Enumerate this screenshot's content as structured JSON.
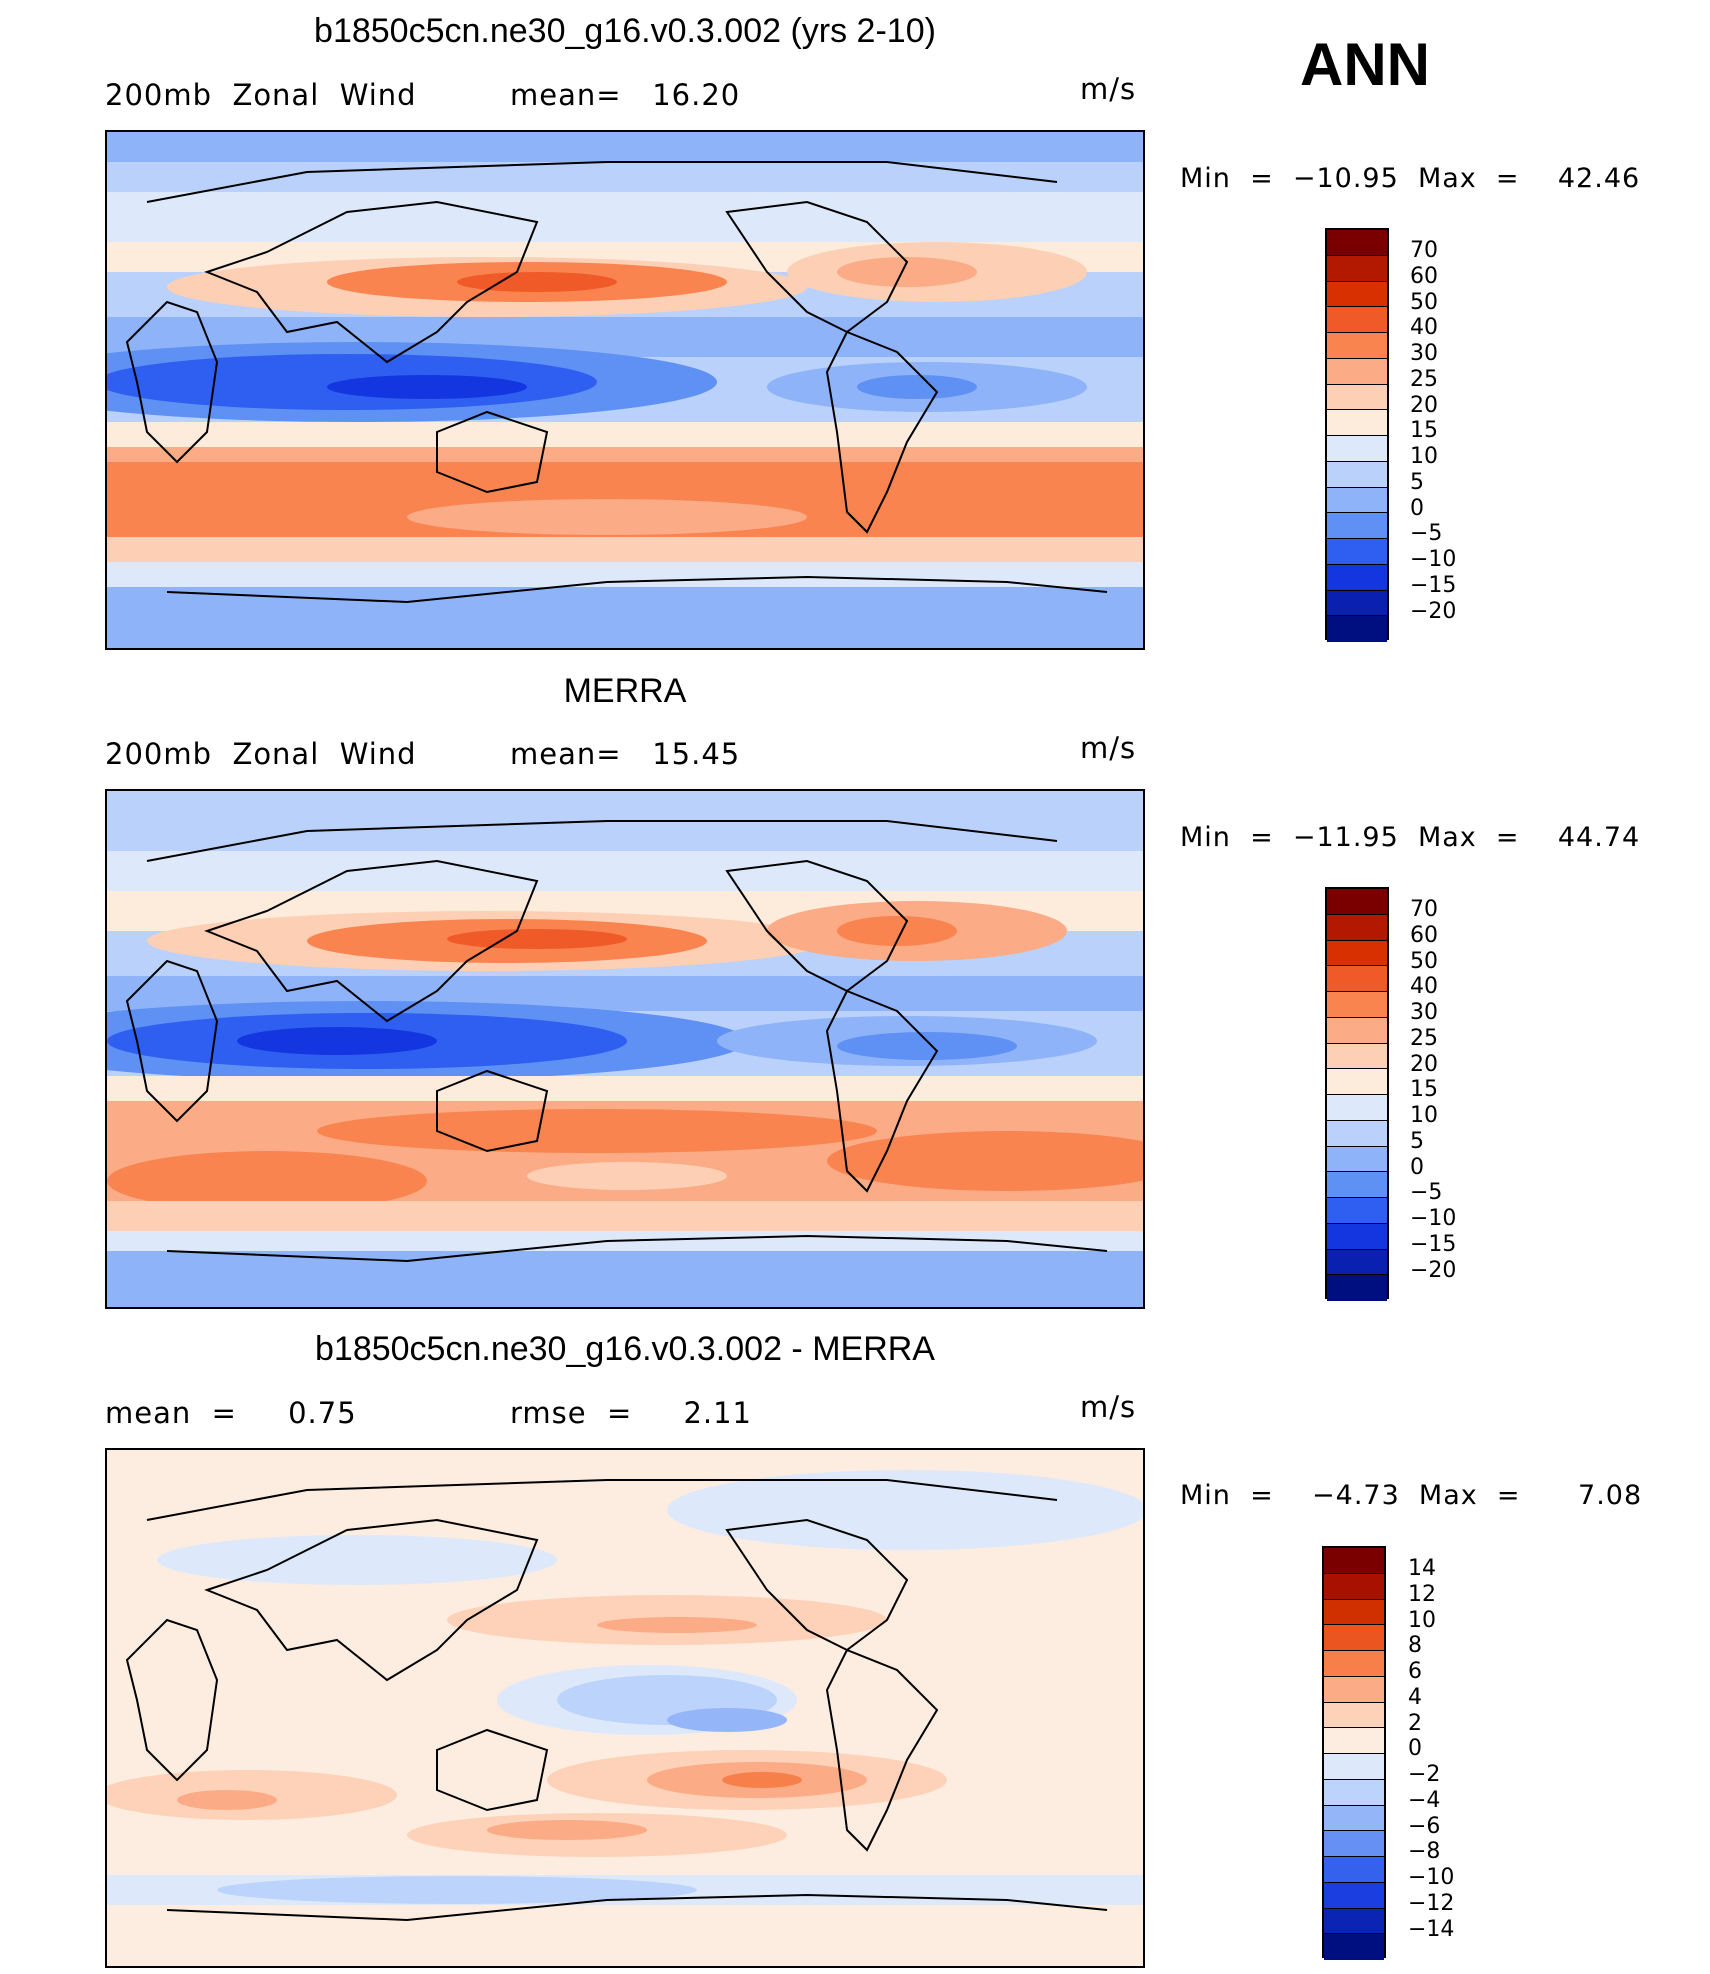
{
  "season": "ANN",
  "panels": [
    {
      "title": "b1850c5cn.ne30_g16.v0.3.002 (yrs 2-10)",
      "left_label": "200mb  Zonal  Wind",
      "mid_label": "mean=   16.20",
      "units": "m/s",
      "minmax": "Min  =  −10.95  Max  =    42.46",
      "levels": [
        "70",
        "60",
        "50",
        "40",
        "30",
        "25",
        "20",
        "15",
        "10",
        "5",
        "0",
        "−5",
        "−10",
        "−15",
        "−20"
      ]
    },
    {
      "title": "MERRA",
      "left_label": "200mb  Zonal  Wind",
      "mid_label": "mean=   15.45",
      "units": "m/s",
      "minmax": "Min  =  −11.95  Max  =    44.74",
      "levels": [
        "70",
        "60",
        "50",
        "40",
        "30",
        "25",
        "20",
        "15",
        "10",
        "5",
        "0",
        "−5",
        "−10",
        "−15",
        "−20"
      ]
    },
    {
      "title": "b1850c5cn.ne30_g16.v0.3.002 - MERRA",
      "left_label": "mean  =     0.75",
      "mid_label": "rmse  =     2.11",
      "units": "m/s",
      "minmax": "Min  =    −4.73  Max  =      7.08",
      "levels": [
        "14",
        "12",
        "10",
        "8",
        "6",
        "4",
        "2",
        "0",
        "−2",
        "−4",
        "−6",
        "−8",
        "−10",
        "−12",
        "−14"
      ]
    }
  ],
  "colors": {
    "abs_scale": [
      "#7a0000",
      "#b31800",
      "#d83000",
      "#f05a28",
      "#f98450",
      "#fbab85",
      "#fdd0b5",
      "#fdebdc",
      "#dde9fb",
      "#b9d1fb",
      "#8eb3f8",
      "#5f90f3",
      "#2e5ff0",
      "#1336e0",
      "#0a20b0",
      "#000f80"
    ],
    "diff_scale": [
      "#7a0000",
      "#a81000",
      "#d03000",
      "#eb5520",
      "#f7804a",
      "#fbab85",
      "#fdd2b8",
      "#fdece0",
      "#dde9fb",
      "#bcd3fb",
      "#94b6f8",
      "#6690f3",
      "#3462ec",
      "#1a3ee0",
      "#0b24b4",
      "#000f80"
    ]
  }
}
